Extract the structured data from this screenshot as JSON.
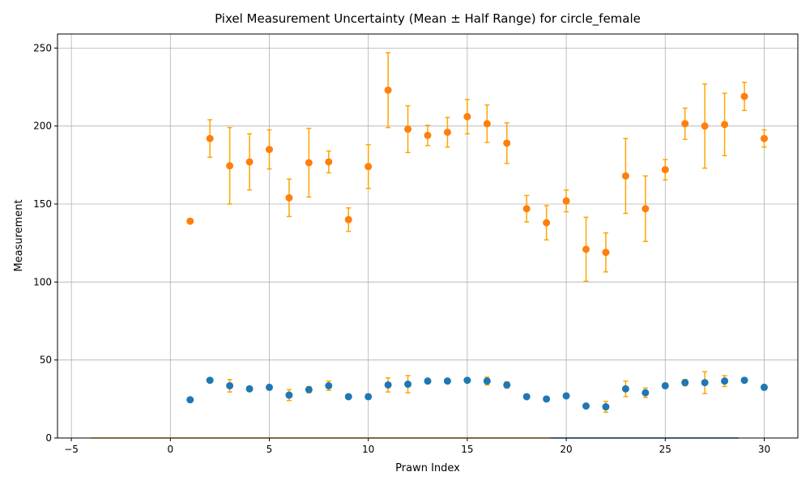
{
  "chart_data": {
    "type": "scatter",
    "title": "Pixel Measurement Uncertainty (Mean ± Half Range) for circle_female",
    "xlabel": "Prawn Index",
    "ylabel": "Measurement",
    "xlim": [
      -5.7,
      31.7
    ],
    "ylim": [
      0,
      259
    ],
    "xticks": [
      -5,
      0,
      5,
      10,
      15,
      20,
      25,
      30
    ],
    "yticks": [
      0,
      50,
      100,
      150,
      200,
      250
    ],
    "grid": true,
    "colors": {
      "orange": "#ff7f0e",
      "blue": "#1f77b4",
      "errorbar": "#ffa500"
    },
    "baseline": [
      {
        "x_start": -4,
        "x_end": 19.2,
        "y": 0,
        "color": "#ffa500"
      },
      {
        "x_start": 19.2,
        "x_end": 28.7,
        "y": 0,
        "color": "#1f77b4"
      }
    ],
    "series": [
      {
        "color": "#ff7f0e",
        "points": [
          {
            "x": 1,
            "y": 139,
            "err": 1.5
          },
          {
            "x": 2,
            "y": 192,
            "err": 12
          },
          {
            "x": 3,
            "y": 174.5,
            "err": 24.5
          },
          {
            "x": 4,
            "y": 177,
            "err": 18
          },
          {
            "x": 5,
            "y": 185,
            "err": 12.5
          },
          {
            "x": 6,
            "y": 154,
            "err": 12
          },
          {
            "x": 7,
            "y": 176.5,
            "err": 22
          },
          {
            "x": 8,
            "y": 177,
            "err": 7
          },
          {
            "x": 9,
            "y": 140,
            "err": 7.5
          },
          {
            "x": 10,
            "y": 174,
            "err": 14
          },
          {
            "x": 11,
            "y": 223,
            "err": 24
          },
          {
            "x": 12,
            "y": 198,
            "err": 15
          },
          {
            "x": 13,
            "y": 194,
            "err": 6.5
          },
          {
            "x": 14,
            "y": 196,
            "err": 9.5
          },
          {
            "x": 15,
            "y": 206,
            "err": 11
          },
          {
            "x": 16,
            "y": 201.5,
            "err": 12
          },
          {
            "x": 17,
            "y": 189,
            "err": 13
          },
          {
            "x": 18,
            "y": 147,
            "err": 8.5
          },
          {
            "x": 19,
            "y": 138,
            "err": 11
          },
          {
            "x": 20,
            "y": 152,
            "err": 7
          },
          {
            "x": 21,
            "y": 121,
            "err": 20.5
          },
          {
            "x": 22,
            "y": 119,
            "err": 12.5
          },
          {
            "x": 23,
            "y": 168,
            "err": 24
          },
          {
            "x": 24,
            "y": 147,
            "err": 21
          },
          {
            "x": 25,
            "y": 172,
            "err": 6.5
          },
          {
            "x": 26,
            "y": 201.5,
            "err": 10
          },
          {
            "x": 27,
            "y": 200,
            "err": 27
          },
          {
            "x": 28,
            "y": 201,
            "err": 20
          },
          {
            "x": 29,
            "y": 219,
            "err": 9
          },
          {
            "x": 30,
            "y": 192,
            "err": 5.5
          }
        ]
      },
      {
        "color": "#1f77b4",
        "points": [
          {
            "x": 1,
            "y": 24.5,
            "err": 0.5
          },
          {
            "x": 2,
            "y": 37,
            "err": 1
          },
          {
            "x": 3,
            "y": 33.5,
            "err": 4
          },
          {
            "x": 4,
            "y": 31.5,
            "err": 1.5
          },
          {
            "x": 5,
            "y": 32.5,
            "err": 1
          },
          {
            "x": 6,
            "y": 27.5,
            "err": 3.5
          },
          {
            "x": 7,
            "y": 31,
            "err": 2
          },
          {
            "x": 8,
            "y": 33.5,
            "err": 3
          },
          {
            "x": 9,
            "y": 26.5,
            "err": 1.5
          },
          {
            "x": 10,
            "y": 26.5,
            "err": 1.5
          },
          {
            "x": 11,
            "y": 34,
            "err": 4.5
          },
          {
            "x": 12,
            "y": 34.5,
            "err": 5.5
          },
          {
            "x": 13,
            "y": 36.5,
            "err": 1
          },
          {
            "x": 14,
            "y": 36.5,
            "err": 0.5
          },
          {
            "x": 15,
            "y": 37,
            "err": 0.5
          },
          {
            "x": 16,
            "y": 36.5,
            "err": 2.5
          },
          {
            "x": 17,
            "y": 34,
            "err": 2
          },
          {
            "x": 18,
            "y": 26.5,
            "err": 1
          },
          {
            "x": 19,
            "y": 25,
            "err": 0.5
          },
          {
            "x": 20,
            "y": 27,
            "err": 1
          },
          {
            "x": 21,
            "y": 20.5,
            "err": 1
          },
          {
            "x": 22,
            "y": 20,
            "err": 3.5
          },
          {
            "x": 23,
            "y": 31.5,
            "err": 5
          },
          {
            "x": 24,
            "y": 29,
            "err": 3
          },
          {
            "x": 25,
            "y": 33.5,
            "err": 1.5
          },
          {
            "x": 26,
            "y": 35.5,
            "err": 2
          },
          {
            "x": 27,
            "y": 35.5,
            "err": 7
          },
          {
            "x": 28,
            "y": 36.5,
            "err": 3.5
          },
          {
            "x": 29,
            "y": 37,
            "err": 0.5
          },
          {
            "x": 30,
            "y": 32.5,
            "err": 1
          }
        ]
      }
    ]
  }
}
